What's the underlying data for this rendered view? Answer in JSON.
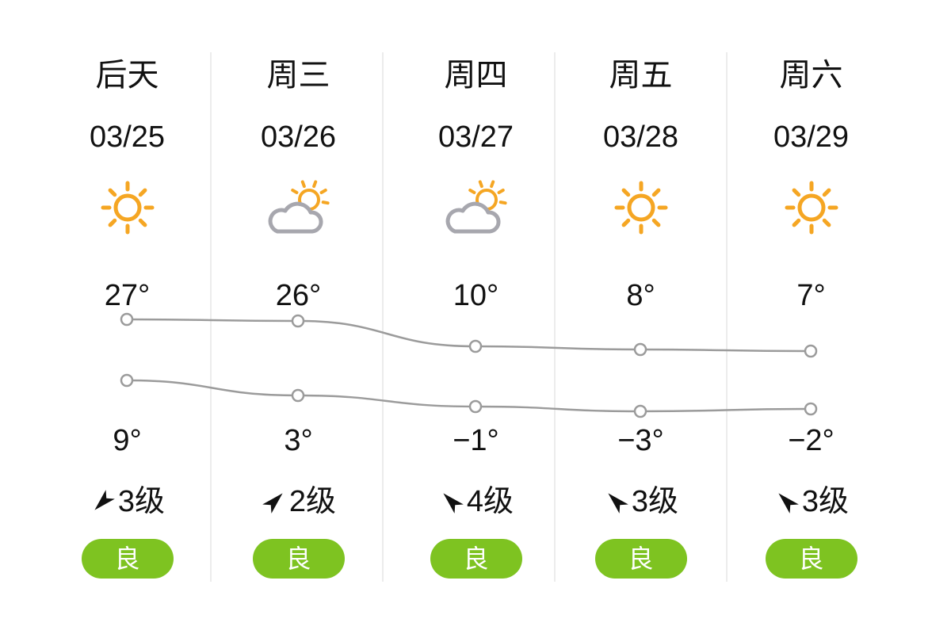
{
  "days": [
    {
      "label": "后天",
      "date": "03/25",
      "weather_icon": "sun-icon",
      "high": "27°",
      "low": "9°",
      "high_value": 27,
      "low_value": 9,
      "wind": "3级",
      "wind_arrow_deg": 225,
      "aqi": "良"
    },
    {
      "label": "周三",
      "date": "03/26",
      "weather_icon": "partly-cloudy-icon",
      "high": "26°",
      "low": "3°",
      "high_value": 26,
      "low_value": 3,
      "wind": "2级",
      "wind_arrow_deg": 45,
      "aqi": "良"
    },
    {
      "label": "周四",
      "date": "03/27",
      "weather_icon": "partly-cloudy-icon",
      "high": "10°",
      "low": "−1°",
      "high_value": 10,
      "low_value": -1,
      "wind": "4级",
      "wind_arrow_deg": 315,
      "aqi": "良"
    },
    {
      "label": "周五",
      "date": "03/28",
      "weather_icon": "sun-icon",
      "high": "8°",
      "low": "−3°",
      "high_value": 8,
      "low_value": -3,
      "wind": "3级",
      "wind_arrow_deg": 315,
      "aqi": "良"
    },
    {
      "label": "周六",
      "date": "03/29",
      "weather_icon": "sun-icon",
      "high": "7°",
      "low": "−2°",
      "high_value": 7,
      "low_value": -2,
      "wind": "3级",
      "wind_arrow_deg": 315,
      "aqi": "良"
    }
  ],
  "colors": {
    "aqi_good": "#7ec321",
    "sun": "#f5a623",
    "cloud": "#a7a7ae",
    "line": "#9b9b9b",
    "divider": "#ececec"
  }
}
